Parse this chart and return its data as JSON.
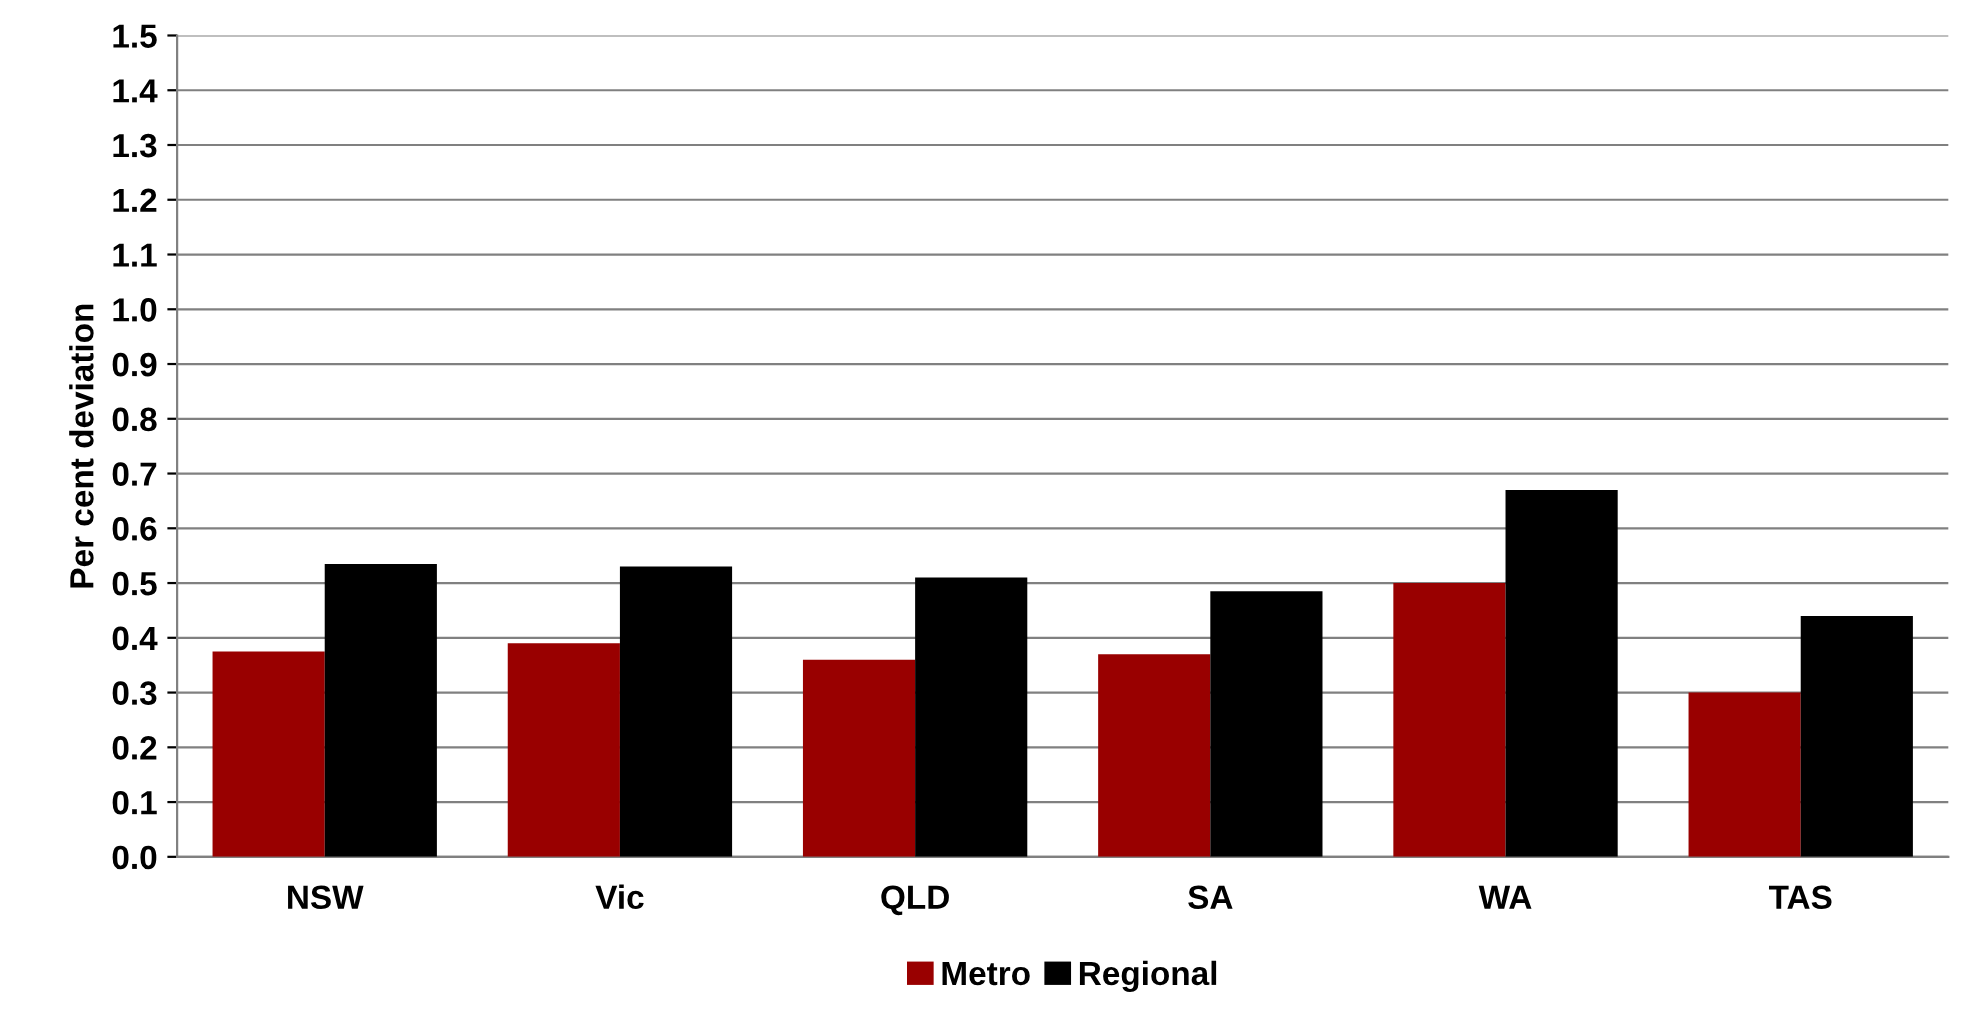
{
  "chart_data": {
    "type": "bar",
    "ylabel": "Per cent deviation",
    "categories": [
      "NSW",
      "Vic",
      "QLD",
      "SA",
      "WA",
      "TAS"
    ],
    "series": [
      {
        "name": "Metro",
        "color": "#990000",
        "values": [
          0.375,
          0.39,
          0.36,
          0.37,
          0.5,
          0.3
        ]
      },
      {
        "name": "Regional",
        "color": "#000000",
        "values": [
          0.535,
          0.53,
          0.51,
          0.485,
          0.67,
          0.44
        ]
      }
    ],
    "ylim": [
      0,
      1.5
    ],
    "yticks": [
      {
        "value": 0,
        "label": "0.0"
      },
      {
        "value": 0.1,
        "label": "0.1"
      },
      {
        "value": 0.2,
        "label": "0.2"
      },
      {
        "value": 0.3,
        "label": "0.3"
      },
      {
        "value": 0.4,
        "label": "0.4"
      },
      {
        "value": 0.5,
        "label": "0.5"
      },
      {
        "value": 0.6,
        "label": "0.6"
      },
      {
        "value": 0.7,
        "label": "0.7"
      },
      {
        "value": 0.8,
        "label": "0.8"
      },
      {
        "value": 0.9,
        "label": "0.9"
      },
      {
        "value": 1.0,
        "label": "1.0"
      },
      {
        "value": 1.1,
        "label": "1.1"
      },
      {
        "value": 1.2,
        "label": "1.2"
      },
      {
        "value": 1.3,
        "label": "1.3"
      },
      {
        "value": 1.4,
        "label": "1.4"
      },
      {
        "value": 1.5,
        "label": "1.5"
      }
    ],
    "grid": "y",
    "legend": "bottom"
  }
}
